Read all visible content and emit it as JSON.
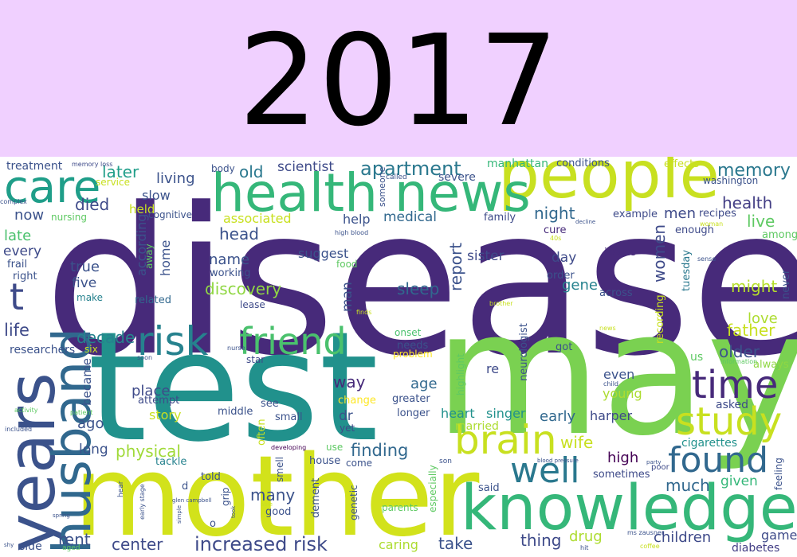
{
  "header": {
    "year": "2017",
    "background": "#f0d0ff"
  },
  "palette": [
    "#440154",
    "#472a7a",
    "#3b528b",
    "#2c728e",
    "#21918c",
    "#28ae80",
    "#5ec962",
    "#addc30",
    "#fde725"
  ],
  "words": [
    {
      "text": "disease",
      "color": "#472a7a"
    },
    {
      "text": "test",
      "color": "#21918c"
    },
    {
      "text": "may",
      "color": "#7ad151"
    },
    {
      "text": "mother",
      "color": "#d2e21b"
    },
    {
      "text": "people",
      "color": "#c8e020"
    },
    {
      "text": "health news",
      "color": "#35b779"
    },
    {
      "text": "knowledge",
      "color": "#35b779"
    },
    {
      "text": "years",
      "color": "#3b528b"
    },
    {
      "text": "husband",
      "color": "#31688e"
    },
    {
      "text": "care",
      "color": "#1f9e89"
    },
    {
      "text": "friend",
      "color": "#4ac16d"
    },
    {
      "text": "risk",
      "color": "#26828e"
    },
    {
      "text": "brain",
      "color": "#c8e020"
    },
    {
      "text": "study",
      "color": "#c8e020"
    },
    {
      "text": "time",
      "color": "#472a7a"
    },
    {
      "text": "found",
      "color": "#31688e"
    },
    {
      "text": "well",
      "color": "#2a788e"
    },
    {
      "text": "t",
      "color": "#3e4a89"
    },
    {
      "text": "increased risk",
      "color": "#3e4a89"
    },
    {
      "text": "apartment",
      "color": "#2a788e"
    },
    {
      "text": "discovery",
      "color": "#90d743"
    },
    {
      "text": "finding",
      "color": "#31688e"
    },
    {
      "text": "physical",
      "color": "#a0da39"
    },
    {
      "text": "memory",
      "color": "#2a788e"
    },
    {
      "text": "health",
      "color": "#433e85"
    },
    {
      "text": "later",
      "color": "#1f9e89"
    },
    {
      "text": "old",
      "color": "#2a788e"
    },
    {
      "text": "scientist",
      "color": "#3e4a89"
    },
    {
      "text": "night",
      "color": "#31688e"
    },
    {
      "text": "sleep",
      "color": "#31688e"
    },
    {
      "text": "died",
      "color": "#3e4a89"
    },
    {
      "text": "head",
      "color": "#3b528b"
    },
    {
      "text": "name",
      "color": "#3b528b"
    },
    {
      "text": "living",
      "color": "#3b528b"
    },
    {
      "text": "life",
      "color": "#3e4a89"
    },
    {
      "text": "decade",
      "color": "#26828e"
    },
    {
      "text": "older",
      "color": "#3b528b"
    },
    {
      "text": "live",
      "color": "#5ec962"
    },
    {
      "text": "might",
      "color": "#b5de2b"
    },
    {
      "text": "father",
      "color": "#c8e020"
    },
    {
      "text": "love",
      "color": "#addc30"
    },
    {
      "text": "men",
      "color": "#3e4a89"
    },
    {
      "text": "women",
      "color": "#3e4a89"
    },
    {
      "text": "now",
      "color": "#3b528b"
    },
    {
      "text": "late",
      "color": "#4ac16d"
    },
    {
      "text": "every",
      "color": "#3e4a89"
    },
    {
      "text": "true",
      "color": "#3b528b"
    },
    {
      "text": "five",
      "color": "#3b528b"
    },
    {
      "text": "report",
      "color": "#3b528b"
    },
    {
      "text": "sister",
      "color": "#3e4a89"
    },
    {
      "text": "day",
      "color": "#3e4a89"
    },
    {
      "text": "gene",
      "color": "#26828e"
    },
    {
      "text": "way",
      "color": "#472a7a"
    },
    {
      "text": "age",
      "color": "#31688e"
    },
    {
      "text": "place",
      "color": "#3e4a89"
    },
    {
      "text": "story",
      "color": "#c8e020"
    },
    {
      "text": "ago",
      "color": "#3b528b"
    },
    {
      "text": "long",
      "color": "#3b528b"
    },
    {
      "text": "wife",
      "color": "#c8e020"
    },
    {
      "text": "early",
      "color": "#31688e"
    },
    {
      "text": "harper",
      "color": "#3e4a89"
    },
    {
      "text": "young",
      "color": "#addc30"
    },
    {
      "text": "even",
      "color": "#3b528b"
    },
    {
      "text": "high",
      "color": "#440154"
    },
    {
      "text": "much",
      "color": "#31688e"
    },
    {
      "text": "given",
      "color": "#35b779"
    },
    {
      "text": "thing",
      "color": "#3e4a89"
    },
    {
      "text": "drug",
      "color": "#addc30"
    },
    {
      "text": "children",
      "color": "#3e4a89"
    },
    {
      "text": "take",
      "color": "#3b528b"
    },
    {
      "text": "rent",
      "color": "#3b528b"
    },
    {
      "text": "center",
      "color": "#3e4a89"
    },
    {
      "text": "many",
      "color": "#3b528b"
    },
    {
      "text": "caring",
      "color": "#addc30"
    },
    {
      "text": "game",
      "color": "#3e4a89"
    },
    {
      "text": "diabetes",
      "color": "#433e85"
    },
    {
      "text": "side",
      "color": "#3b528b"
    },
    {
      "text": "cigarettes",
      "color": "#21918c"
    },
    {
      "text": "asked",
      "color": "#3e4a89"
    },
    {
      "text": "medical",
      "color": "#31688e"
    },
    {
      "text": "help",
      "color": "#3b528b"
    },
    {
      "text": "associated",
      "color": "#c8e020"
    },
    {
      "text": "slow",
      "color": "#3b528b"
    },
    {
      "text": "held",
      "color": "#c8e020"
    },
    {
      "text": "according",
      "color": "#3b528b"
    },
    {
      "text": "home",
      "color": "#3b528b"
    },
    {
      "text": "suggest",
      "color": "#3b528b"
    },
    {
      "text": "related",
      "color": "#31688e"
    },
    {
      "text": "working",
      "color": "#3b528b"
    },
    {
      "text": "researchers",
      "color": "#3b528b"
    },
    {
      "text": "became",
      "color": "#3b528b"
    },
    {
      "text": "treatment",
      "color": "#3b528b"
    },
    {
      "text": "nursing",
      "color": "#5ec962"
    },
    {
      "text": "right",
      "color": "#3b528b"
    },
    {
      "text": "frail",
      "color": "#3b528b"
    },
    {
      "text": "make",
      "color": "#26828e"
    },
    {
      "text": "man",
      "color": "#3b528b"
    },
    {
      "text": "dr",
      "color": "#3b528b"
    },
    {
      "text": "heart",
      "color": "#21918c"
    },
    {
      "text": "singer",
      "color": "#21918c"
    },
    {
      "text": "re",
      "color": "#3e4a89"
    },
    {
      "text": "got",
      "color": "#3b528b"
    },
    {
      "text": "us",
      "color": "#5ec962"
    },
    {
      "text": "always",
      "color": "#90d743"
    },
    {
      "text": "never",
      "color": "#3b528b"
    },
    {
      "text": "among",
      "color": "#5ec962"
    },
    {
      "text": "enough",
      "color": "#3e4a89"
    },
    {
      "text": "recipes",
      "color": "#3e4a89"
    },
    {
      "text": "example",
      "color": "#3e4a89"
    },
    {
      "text": "issues",
      "color": "#472a7a"
    },
    {
      "text": "across",
      "color": "#3b528b"
    },
    {
      "text": "tuesday",
      "color": "#2a788e"
    },
    {
      "text": "cure",
      "color": "#472a7a"
    },
    {
      "text": "order",
      "color": "#3b528b"
    },
    {
      "text": "family",
      "color": "#3e4a89"
    },
    {
      "text": "manhattan",
      "color": "#35b779"
    },
    {
      "text": "conditions",
      "color": "#3b528b"
    },
    {
      "text": "effects",
      "color": "#c8e020"
    },
    {
      "text": "washington",
      "color": "#3b528b"
    },
    {
      "text": "severe",
      "color": "#3b528b"
    },
    {
      "text": "recording",
      "color": "#c8e020"
    },
    {
      "text": "neurologist",
      "color": "#3b528b"
    },
    {
      "text": "highlight",
      "color": "#5ec962"
    },
    {
      "text": "married",
      "color": "#addc30"
    },
    {
      "text": "greater",
      "color": "#3b528b"
    },
    {
      "text": "longer",
      "color": "#3b528b"
    },
    {
      "text": "needs",
      "color": "#3b528b"
    },
    {
      "text": "onset",
      "color": "#4ac16d"
    },
    {
      "text": "problem",
      "color": "#fde725"
    },
    {
      "text": "change",
      "color": "#fde725"
    },
    {
      "text": "yet",
      "color": "#3e4a89"
    },
    {
      "text": "small",
      "color": "#3b528b"
    },
    {
      "text": "middle",
      "color": "#3b528b"
    },
    {
      "text": "attempt",
      "color": "#3e4a89"
    },
    {
      "text": "see",
      "color": "#3b528b"
    },
    {
      "text": "often",
      "color": "#c8e020"
    },
    {
      "text": "star",
      "color": "#3e4a89"
    },
    {
      "text": "six",
      "color": "#c8e020"
    },
    {
      "text": "tackle",
      "color": "#26828e"
    },
    {
      "text": "told",
      "color": "#3b528b"
    },
    {
      "text": "house",
      "color": "#3b528b"
    },
    {
      "text": "come",
      "color": "#3b528b"
    },
    {
      "text": "use",
      "color": "#5ec962"
    },
    {
      "text": "especially",
      "color": "#5ec962"
    },
    {
      "text": "dement",
      "color": "#3b528b"
    },
    {
      "text": "genetic",
      "color": "#3b528b"
    },
    {
      "text": "parents",
      "color": "#5ec962"
    },
    {
      "text": "said",
      "color": "#3b528b"
    },
    {
      "text": "good",
      "color": "#3b528b"
    },
    {
      "text": "grip",
      "color": "#3b528b"
    },
    {
      "text": "o",
      "color": "#3b528b"
    },
    {
      "text": "d",
      "color": "#3b528b"
    },
    {
      "text": "sometimes",
      "color": "#3e4a89"
    },
    {
      "text": "feeling",
      "color": "#3b528b"
    },
    {
      "text": "poor",
      "color": "#3e4a89"
    },
    {
      "text": "body",
      "color": "#3b528b"
    },
    {
      "text": "service",
      "color": "#c8e020"
    },
    {
      "text": "cognitive",
      "color": "#3b528b"
    },
    {
      "text": "food",
      "color": "#5ec962"
    },
    {
      "text": "lease",
      "color": "#3e4a89"
    },
    {
      "text": "away",
      "color": "#5ec962"
    },
    {
      "text": "someone",
      "color": "#3b528b"
    },
    {
      "text": "called",
      "color": "#3b528b"
    },
    {
      "text": "memory loss",
      "color": "#3e4a89"
    },
    {
      "text": "complex",
      "color": "#3b528b"
    },
    {
      "text": "high blood",
      "color": "#3b528b"
    },
    {
      "text": "40s",
      "color": "#c8e020"
    },
    {
      "text": "decline",
      "color": "#3b528b"
    },
    {
      "text": "woman",
      "color": "#c8e020"
    },
    {
      "text": "sense",
      "color": "#3b528b"
    },
    {
      "text": "brother",
      "color": "#c8e020"
    },
    {
      "text": "finds",
      "color": "#c8e020"
    },
    {
      "text": "news",
      "color": "#c8e020"
    },
    {
      "text": "nurse",
      "color": "#3b528b"
    },
    {
      "text": "soon",
      "color": "#3b528b"
    },
    {
      "text": "information",
      "color": "#5ec962"
    },
    {
      "text": "child",
      "color": "#3b528b"
    },
    {
      "text": "activity",
      "color": "#5ec962"
    },
    {
      "text": "included",
      "color": "#3b528b"
    },
    {
      "text": "patient",
      "color": "#5ec962"
    },
    {
      "text": "developing",
      "color": "#440154"
    },
    {
      "text": "smell",
      "color": "#3b528b"
    },
    {
      "text": "son",
      "color": "#3b528b"
    },
    {
      "text": "blood pressure",
      "color": "#3b528b"
    },
    {
      "text": "party",
      "color": "#3b528b"
    },
    {
      "text": "able",
      "color": "#c8e020"
    },
    {
      "text": "hear",
      "color": "#3b528b"
    },
    {
      "text": "early stage",
      "color": "#3b528b"
    },
    {
      "text": "glen campbell",
      "color": "#3b528b"
    },
    {
      "text": "simple",
      "color": "#3b528b"
    },
    {
      "text": "took",
      "color": "#3b528b"
    },
    {
      "text": "spring",
      "color": "#3b528b"
    },
    {
      "text": "shy",
      "color": "#3b528b"
    },
    {
      "text": "aged",
      "color": "#5ec962"
    },
    {
      "text": "ms zausner",
      "color": "#3b528b"
    },
    {
      "text": "coffee",
      "color": "#c8e020"
    },
    {
      "text": "hit",
      "color": "#3b528b"
    },
    {
      "text": "end",
      "color": "#3b528b"
    }
  ]
}
